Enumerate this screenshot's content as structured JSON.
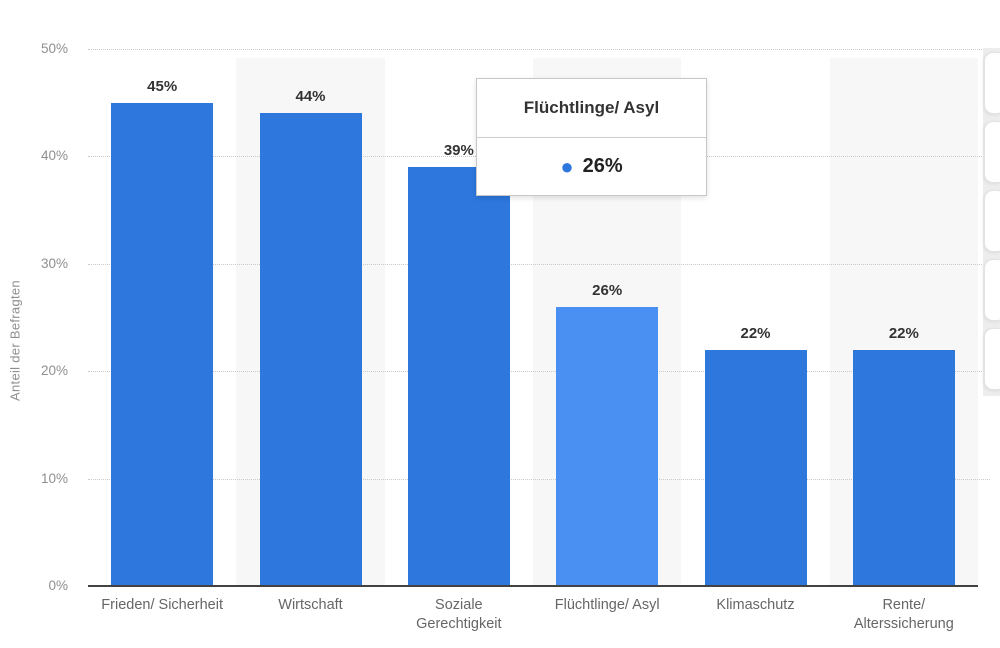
{
  "chart_data": {
    "type": "bar",
    "title": "",
    "ylabel": "Anteil der Befragten",
    "xlabel": "",
    "categories": [
      "Frieden/ Sicherheit",
      "Wirtschaft",
      "Soziale\nGerechtigkeit",
      "Flüchtlinge/ Asyl",
      "Klimaschutz",
      "Rente/\nAlterssicherung"
    ],
    "values": [
      45,
      44,
      39,
      26,
      22,
      22
    ],
    "value_labels": [
      "45%",
      "44%",
      "39%",
      "26%",
      "22%",
      "22%"
    ],
    "yticks": [
      0,
      10,
      20,
      30,
      40,
      50
    ],
    "ytick_labels": [
      "0%",
      "10%",
      "20%",
      "30%",
      "40%",
      "50%"
    ],
    "ylim": [
      0,
      50
    ],
    "grid": "horizontal-dotted",
    "legend": "none",
    "highlighted_index": 3,
    "colors": {
      "bar": "#2d77dd",
      "bar_highlight": "#4a90f2",
      "plot_band": "#f7f7f7",
      "gridline": "#c9c9c9",
      "axis_line": "#424242",
      "tick_label": "#8f8f8f",
      "value_label": "#333333",
      "category_label": "#666666"
    }
  },
  "tooltip": {
    "title": "Flüchtlinge/ Asyl",
    "marker": "●",
    "value": "26%"
  }
}
